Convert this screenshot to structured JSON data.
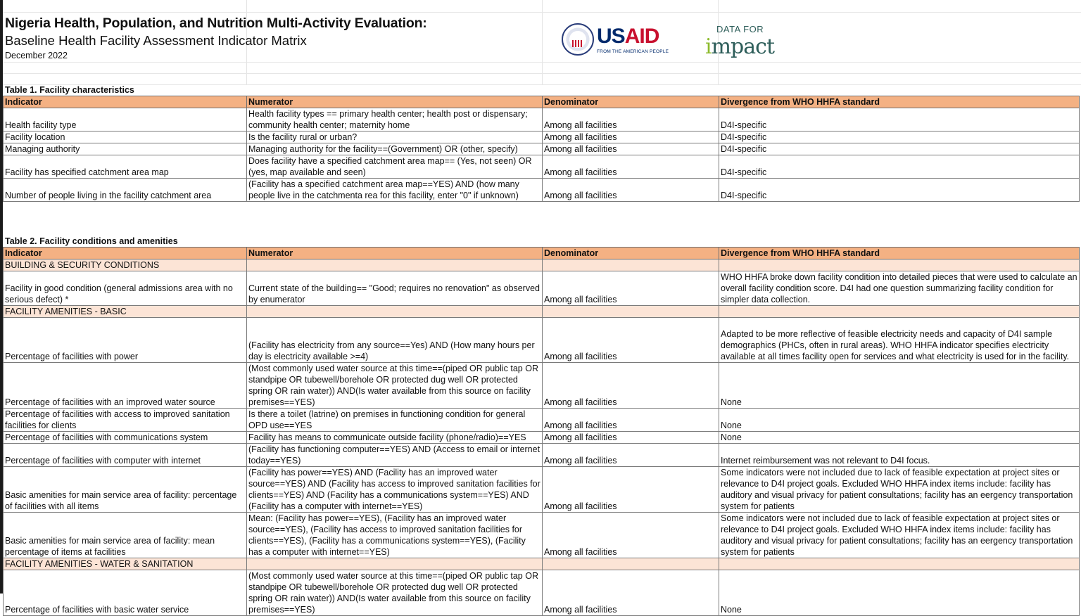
{
  "header": {
    "title": "Nigeria Health, Population, and Nutrition Multi-Activity Evaluation:",
    "subtitle": "Baseline Health Facility Assessment Indicator Matrix",
    "date": "December 2022"
  },
  "logos": {
    "usaid": {
      "us": "US",
      "aid": "AID",
      "tagline": "FROM THE AMERICAN PEOPLE"
    },
    "d4i": {
      "top": "DATA FOR",
      "main_i": "i",
      "main_rest": "mpact"
    }
  },
  "colors": {
    "header_fill": "#f4b183",
    "section_fill": "#fce4d6",
    "usaid_blue": "#002a6c",
    "usaid_red": "#c8102e",
    "d4i_green": "#2e5e5a"
  },
  "columns": [
    "Indicator",
    "Numerator",
    "Denominator",
    "Divergence from WHO HHFA standard"
  ],
  "table1": {
    "label": "Table 1. Facility characteristics",
    "rows": [
      {
        "type": "row",
        "cells": [
          "Health facility type",
          "Health facility types ==  primary health center; health post or dispensary; community health center; maternity home",
          "Among all facilities",
          "D4I-specific"
        ]
      },
      {
        "type": "row",
        "cells": [
          "Facility location",
          "Is the facility rural or urban?",
          "Among all facilities",
          "D4I-specific"
        ]
      },
      {
        "type": "row",
        "cells": [
          "Managing authority",
          "Managing authority for the facility==(Government) OR (other, specify)",
          "Among all facilities",
          "D4I-specific"
        ]
      },
      {
        "type": "row",
        "cells": [
          "Facility has specified catchment area map",
          "Does facility have a specified catchment area map== (Yes, not seen) OR (yes, map available and seen)",
          "Among all facilities",
          "D4I-specific"
        ]
      },
      {
        "type": "row",
        "cells": [
          "Number of people living in the facility catchment area",
          "(Facility has a specified catchment area map==YES) AND (how many people live in the catchmenta rea for this facility, enter \"0\" if unknown)",
          "Among all facilities",
          "D4I-specific"
        ]
      }
    ]
  },
  "table2": {
    "label": "Table 2. Facility conditions and amenities",
    "rows": [
      {
        "type": "sec",
        "cells": [
          "BUILDING & SECURITY CONDITIONS",
          "",
          "",
          ""
        ]
      },
      {
        "type": "row",
        "cells": [
          "Facility in good condition (general admissions area with no serious defect) *",
          "Current state of the building== \"Good; requires no renovation\" as observed by enumerator",
          "Among all facilities",
          "WHO HHFA broke down facility condition into detailed pieces that were used to calculate an overall facility condition score. D4I had one question summarizing facility condition for simpler data collection."
        ]
      },
      {
        "type": "sec",
        "cells": [
          "FACILITY AMENITIES - BASIC",
          "",
          "",
          ""
        ]
      },
      {
        "type": "row",
        "cells": [
          "Percentage of facilities with power",
          "(Facility has electricity from any source==Yes) AND (How many hours per day is electricity available >=4)",
          "Among all facilities",
          "Adapted to be more reflective of feasible electricity needs and capacity of D4I sample demographics (PHCs, often in rural areas). WHO HHFA indicator specifies electricity available at all times facility open for services and what electricity is used for in the facility."
        ]
      },
      {
        "type": "row",
        "cells": [
          "Percentage of facilities with an improved water source",
          "(Most commonly used water source at this time==(piped OR public tap OR standpipe OR tubewell/borehole OR protected dug well OR protected spring OR rain water)) AND(Is water available from this source on facility premises==YES)",
          "Among all facilities",
          "None"
        ]
      },
      {
        "type": "row",
        "cells": [
          "Percentage of facilities with access to improved sanitation facilities for clients",
          "Is there a toilet (latrine) on premises in functioning condition for general OPD use==YES",
          "Among all facilities",
          "None"
        ]
      },
      {
        "type": "row",
        "cells": [
          "Percentage of facilities with communications system",
          "Facility has means to communicate outside facility (phone/radio)==YES",
          "Among all facilities",
          "None"
        ]
      },
      {
        "type": "row",
        "cells": [
          "Percentage of facilities with computer with internet",
          "(Facility has functioning computer==YES) AND (Access to email or internet today==YES)",
          "Among all facilities",
          "Internet reimbursement was not relevant to D4I focus."
        ]
      },
      {
        "type": "row",
        "cells": [
          "Basic amenities for main service area of facility: percentage of facilities with all items",
          "(Facility has power==YES) AND (Facility has an improved water source==YES) AND  (Facility has access to improved sanitation facilities for clients==YES) AND (Facility has a communications system==YES) AND (Facility has a computer with internet==YES)",
          "Among all facilities",
          "Some indicators were not included due to lack of feasible expectation at project sites or relevance to D4I project goals. Excluded WHO HHFA index items include: facility has auditory and visual privacy for patient consultations; facility has an eergency transportation system for patients"
        ]
      },
      {
        "type": "row",
        "cells": [
          "Basic amenities for main service area of facility: mean percentage of items at facilities",
          "Mean: (Facility has power==YES), (Facility has an improved water source==YES),  (Facility has access to improved sanitation facilities for clients==YES), (Facility has a communications system==YES), (Facility has a computer with internet==YES)",
          "Among all facilities",
          "Some indicators were not included due to lack of feasible expectation at project sites or relevance to D4I project goals. Excluded WHO HHFA index items include: facility has auditory and visual privacy for patient consultations; facility has an eergency transportation system for patients"
        ]
      },
      {
        "type": "sec",
        "cells": [
          "FACILITY AMENITIES - WATER & SANITATION",
          "",
          "",
          ""
        ]
      },
      {
        "type": "row",
        "cells": [
          "Percentage of facilities with basic water service",
          "(Most commonly used water source at this time==(piped OR public tap OR standpipe OR tubewell/borehole OR protected dug well OR protected spring OR rain water)) AND(Is water available from this source on facility premises==YES)",
          "Among all facilities",
          "None"
        ]
      }
    ]
  }
}
